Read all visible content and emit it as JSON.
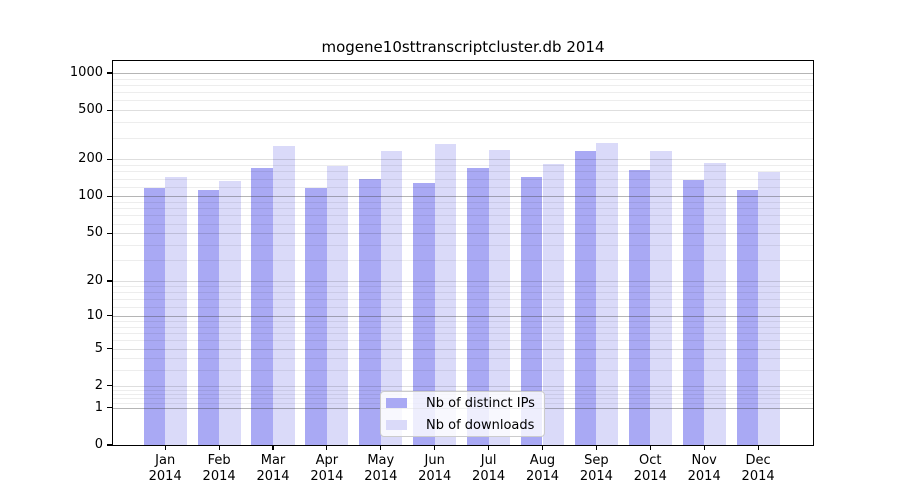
{
  "colors": {
    "ips_bar": "#a9a9f4",
    "downloads_bar": "#dadaf9",
    "axis": "#000000",
    "legend_border": "#cccccc"
  },
  "y_axis": {
    "tick_labels": [
      "0",
      "1",
      "2",
      "5",
      "10",
      "20",
      "50",
      "100",
      "200",
      "500",
      "1000"
    ]
  },
  "x_axis": {
    "months": [
      "Jan",
      "Feb",
      "Mar",
      "Apr",
      "May",
      "Jun",
      "Jul",
      "Aug",
      "Sep",
      "Oct",
      "Nov",
      "Dec"
    ],
    "year": "2014"
  },
  "chart_data": {
    "type": "bar",
    "title": "mogene10sttranscriptcluster.db 2014",
    "categories": [
      "Jan 2014",
      "Feb 2014",
      "Mar 2014",
      "Apr 2014",
      "May 2014",
      "Jun 2014",
      "Jul 2014",
      "Aug 2014",
      "Sep 2014",
      "Oct 2014",
      "Nov 2014",
      "Dec 2014"
    ],
    "series": [
      {
        "name": "Nb of distinct IPs",
        "color": "#a9a9f4",
        "values": [
          117,
          112,
          171,
          118,
          139,
          128,
          171,
          144,
          232,
          163,
          137,
          113
        ]
      },
      {
        "name": "Nb of downloads",
        "color": "#dadaf9",
        "values": [
          144,
          133,
          259,
          178,
          233,
          268,
          240,
          185,
          270,
          235,
          188,
          157
        ]
      }
    ],
    "y_scale": "log1p",
    "y_ticks": [
      0,
      1,
      2,
      5,
      10,
      20,
      50,
      100,
      200,
      500,
      1000
    ],
    "y_light_gridlines": [
      2,
      5,
      20,
      50,
      200,
      500
    ],
    "y_major_gridlines": [
      1,
      10,
      100,
      1000
    ],
    "y_minor_gridlines": [
      1.2,
      1.4,
      1.6,
      1.8,
      3,
      4,
      6,
      7,
      8,
      9,
      12,
      14,
      16,
      18,
      30,
      40,
      60,
      70,
      80,
      90,
      120,
      140,
      160,
      180,
      300,
      400,
      600,
      700,
      800,
      900
    ],
    "ylim": [
      0,
      1285
    ],
    "grid": true,
    "legend_position": "lower center inside"
  }
}
